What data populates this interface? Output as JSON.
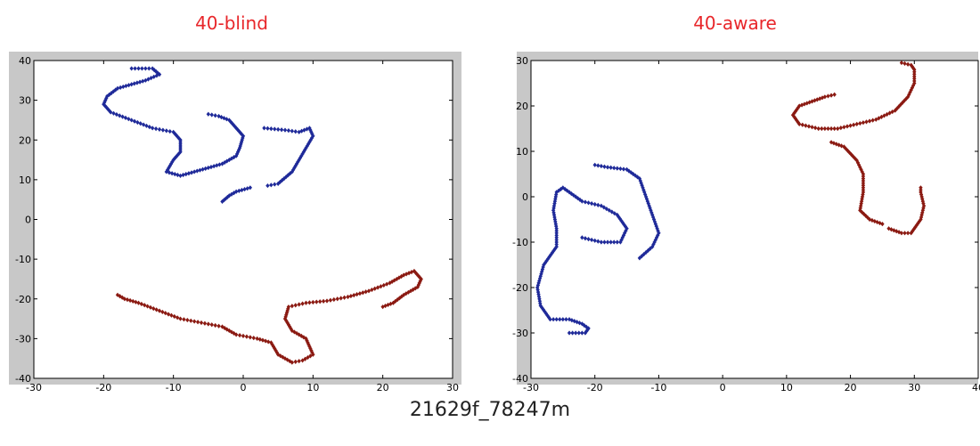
{
  "caption": "21629f_78247m",
  "colors": {
    "title": "#e8262a",
    "series_a": "#1f2a99",
    "series_b": "#8b1a12",
    "frame": "#c8c8c8"
  },
  "chart_data": [
    {
      "type": "scatter",
      "title": "40-blind",
      "xlim": [
        -30,
        30
      ],
      "ylim": [
        -40,
        40
      ],
      "xticks": [
        -30,
        -20,
        -10,
        0,
        10,
        20,
        30
      ],
      "yticks": [
        -40,
        -30,
        -20,
        -10,
        0,
        10,
        20,
        30,
        40
      ],
      "grid": false,
      "series": [
        {
          "color": "#1f2a99",
          "paths": [
            [
              [
                -16,
                38
              ],
              [
                -13,
                38
              ],
              [
                -12,
                36.5
              ],
              [
                -14,
                35
              ],
              [
                -16,
                34
              ],
              [
                -18,
                33
              ],
              [
                -19.5,
                31
              ],
              [
                -20,
                29
              ],
              [
                -19,
                27
              ],
              [
                -16,
                25
              ],
              [
                -13,
                23
              ],
              [
                -10,
                22
              ],
              [
                -9,
                20
              ],
              [
                -9,
                17
              ],
              [
                -10,
                15
              ],
              [
                -11,
                12
              ],
              [
                -9,
                11
              ],
              [
                -7,
                12
              ],
              [
                -5,
                13
              ],
              [
                -3,
                14
              ],
              [
                -1,
                16
              ],
              [
                -0.5,
                18
              ],
              [
                0,
                21
              ],
              [
                -1,
                23
              ],
              [
                -2,
                25
              ],
              [
                -3.5,
                26
              ],
              [
                -5,
                26.5
              ]
            ],
            [
              [
                3,
                23
              ],
              [
                6,
                22.5
              ],
              [
                8,
                22
              ],
              [
                9.5,
                23
              ],
              [
                10,
                21
              ],
              [
                9,
                18
              ],
              [
                8,
                15
              ],
              [
                7,
                12
              ],
              [
                5,
                9
              ],
              [
                3.5,
                8.5
              ]
            ],
            [
              [
                1,
                8
              ],
              [
                -1,
                7
              ],
              [
                -2,
                6
              ],
              [
                -3,
                4.5
              ]
            ]
          ]
        },
        {
          "color": "#8b1a12",
          "paths": [
            [
              [
                -18,
                -19
              ],
              [
                -17,
                -20
              ],
              [
                -15,
                -21
              ],
              [
                -12,
                -23
              ],
              [
                -9,
                -25
              ],
              [
                -6,
                -26
              ],
              [
                -3,
                -27
              ],
              [
                -1,
                -29
              ],
              [
                2,
                -30
              ],
              [
                4,
                -31
              ],
              [
                5,
                -34
              ],
              [
                7,
                -36
              ],
              [
                8.5,
                -35.5
              ],
              [
                10,
                -34
              ],
              [
                9,
                -30
              ],
              [
                7,
                -28
              ],
              [
                6,
                -25
              ],
              [
                6.5,
                -22
              ],
              [
                9,
                -21
              ],
              [
                12,
                -20.5
              ],
              [
                15,
                -19.5
              ],
              [
                18,
                -18
              ],
              [
                21,
                -16
              ],
              [
                23,
                -14
              ],
              [
                24.5,
                -13
              ],
              [
                25.5,
                -15
              ],
              [
                25,
                -17
              ],
              [
                23,
                -19
              ],
              [
                21.5,
                -21
              ],
              [
                20,
                -22
              ]
            ]
          ]
        }
      ]
    },
    {
      "type": "scatter",
      "title": "40-aware",
      "xlim": [
        -30,
        40
      ],
      "ylim": [
        -40,
        30
      ],
      "xticks": [
        -30,
        -20,
        -10,
        0,
        10,
        20,
        30,
        40
      ],
      "yticks": [
        -40,
        -30,
        -20,
        -10,
        0,
        10,
        20,
        30
      ],
      "grid": false,
      "series": [
        {
          "color": "#1f2a99",
          "paths": [
            [
              [
                -20,
                7
              ],
              [
                -18,
                6.5
              ],
              [
                -15,
                6
              ],
              [
                -13,
                4
              ],
              [
                -12,
                0
              ],
              [
                -11,
                -4
              ],
              [
                -10,
                -8
              ],
              [
                -11,
                -11
              ],
              [
                -13,
                -13.5
              ]
            ],
            [
              [
                -22,
                -9
              ],
              [
                -19,
                -10
              ],
              [
                -16,
                -10
              ],
              [
                -15,
                -7
              ],
              [
                -16.5,
                -4
              ],
              [
                -19,
                -2
              ],
              [
                -22,
                -1
              ],
              [
                -24,
                1
              ],
              [
                -25,
                2
              ],
              [
                -26,
                1
              ],
              [
                -26.5,
                -3
              ],
              [
                -26,
                -7
              ],
              [
                -26,
                -11
              ],
              [
                -28,
                -15
              ],
              [
                -29,
                -20
              ],
              [
                -28.5,
                -24
              ],
              [
                -27,
                -27
              ],
              [
                -24,
                -27
              ],
              [
                -22,
                -28
              ],
              [
                -21,
                -29
              ],
              [
                -21.5,
                -30
              ],
              [
                -24,
                -30
              ]
            ]
          ]
        },
        {
          "color": "#8b1a12",
          "paths": [
            [
              [
                17.5,
                22.5
              ],
              [
                16,
                22
              ],
              [
                14,
                21
              ],
              [
                12,
                20
              ],
              [
                11,
                18
              ],
              [
                12,
                16
              ],
              [
                15,
                15
              ],
              [
                18,
                15
              ],
              [
                21,
                16
              ],
              [
                24,
                17
              ],
              [
                27,
                19
              ],
              [
                29,
                22
              ],
              [
                30,
                25
              ],
              [
                30,
                28
              ],
              [
                29.5,
                29
              ],
              [
                28,
                29.5
              ]
            ],
            [
              [
                17,
                12
              ],
              [
                19,
                11
              ],
              [
                21,
                8
              ],
              [
                22,
                5
              ],
              [
                22,
                1
              ],
              [
                21.5,
                -3
              ],
              [
                23,
                -5
              ],
              [
                25,
                -6
              ]
            ],
            [
              [
                26,
                -7
              ],
              [
                28,
                -8
              ],
              [
                29.5,
                -8
              ],
              [
                31,
                -5
              ],
              [
                31.5,
                -2
              ],
              [
                31,
                1
              ],
              [
                31,
                2
              ]
            ]
          ]
        }
      ]
    }
  ]
}
